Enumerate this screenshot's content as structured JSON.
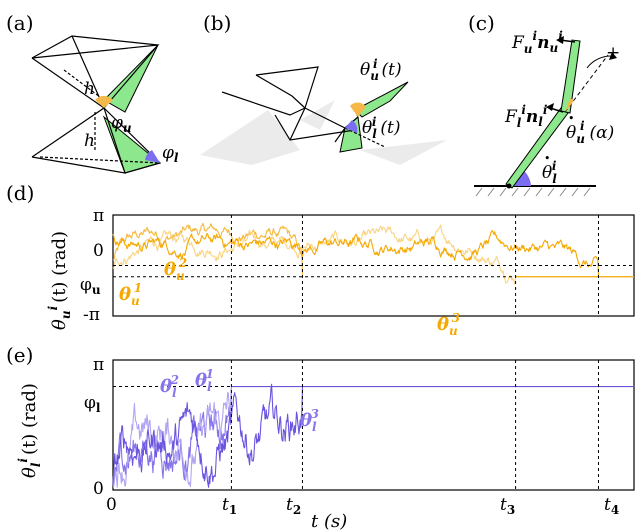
{
  "panels": {
    "a": "(a)",
    "b": "(b)",
    "c": "(c)",
    "d": "(d)",
    "e": "(e)"
  },
  "diagram_a": {
    "h_upper": "h",
    "h_lower": "h",
    "phi_u": "φ",
    "phi_u_sub": "u",
    "phi_l": "φ",
    "phi_l_sub": "l"
  },
  "diagram_b": {
    "theta_u": "θ",
    "theta_u_sub": "u",
    "theta_u_sup": "i",
    "theta_u_arg": "(t)",
    "theta_l": "θ",
    "theta_l_sub": "l",
    "theta_l_sup": "i",
    "theta_l_arg": "(t)"
  },
  "diagram_c": {
    "force_u": "F",
    "force_u_sub": "u",
    "force_u_sup": "i",
    "force_u_n": "n",
    "force_u_n_sub": "u",
    "force_u_n_sup": "i",
    "force_l": "F",
    "force_l_sub": "l",
    "force_l_sup": "i",
    "force_l_n": "n",
    "force_l_n_sub": "l",
    "force_l_n_sup": "i",
    "dtheta_u": "θ",
    "dtheta_u_sub": "u",
    "dtheta_u_sup": "i",
    "dtheta_u_arg": "(α)",
    "dtheta_l": "θ",
    "dtheta_l_sub": "l",
    "dtheta_l_sup": "i",
    "plus": "+"
  },
  "colors": {
    "upper_dark": "#f5a800",
    "upper_mid": "#f7b93d",
    "upper_light": "#fad482",
    "lower_dark": "#6a55e0",
    "lower_mid": "#8774ea",
    "lower_light": "#b1a4f2",
    "wing_green": "#8de88d",
    "phi_l_fill": "#7b6cf0",
    "phi_u_fill": "#f5b94a"
  },
  "chart_data": [
    {
      "type": "line",
      "panel": "(d)",
      "ylabel": "θ_u^i (t) (rad)",
      "yticks": [
        "π",
        "0",
        "φ_u",
        "-π"
      ],
      "ylim": [
        -3.1416,
        3.1416
      ],
      "xlim": [
        0,
        4.4
      ],
      "event_times": {
        "t1": 1.0,
        "t2": 1.6,
        "t3": 3.4,
        "t4": 4.1
      },
      "threshold_label": "φ_u",
      "threshold_value": -0.7,
      "series": [
        {
          "name": "θ_u^1",
          "color": "#f7b93d",
          "end_time": 1.6,
          "start": 0.2,
          "mean": 2.0,
          "final": -0.7
        },
        {
          "name": "θ_u^2",
          "color": "#fad482",
          "end_time": 3.4,
          "start": -0.3,
          "mean": 1.4,
          "final": -0.7
        },
        {
          "name": "θ_u^3",
          "color": "#f5a800",
          "end_time": 4.1,
          "start": 1.8,
          "mean": 1.3,
          "final": -0.7
        }
      ],
      "series_labels": [
        {
          "main": "θ",
          "sub": "u",
          "sup": "1"
        },
        {
          "main": "θ",
          "sub": "u",
          "sup": "2"
        },
        {
          "main": "θ",
          "sub": "u",
          "sup": "3"
        }
      ]
    },
    {
      "type": "line",
      "panel": "(e)",
      "ylabel": "θ_l^i (t) (rad)",
      "xlabel": "t (s)",
      "yticks": [
        "π",
        "φ_l",
        "0"
      ],
      "xticks": [
        "0",
        "t₁",
        "t₂",
        "t₃",
        "t₄"
      ],
      "ylim": [
        0,
        3.1416
      ],
      "xlim": [
        0,
        4.4
      ],
      "event_times": {
        "t1": 1.0,
        "t2": 1.6,
        "t3": 3.4,
        "t4": 4.1
      },
      "threshold_label": "φ_l",
      "threshold_value": 2.5,
      "series": [
        {
          "name": "θ_l^1",
          "color": "#8774ea",
          "end_time": 1.0,
          "start": 0.2,
          "final": 2.5
        },
        {
          "name": "θ_l^2",
          "color": "#b1a4f2",
          "end_time": 1.0,
          "start": 0.3,
          "final": 2.5
        },
        {
          "name": "θ_l^3",
          "color": "#6a55e0",
          "end_time": 1.6,
          "start": 0.2,
          "final": 2.5
        }
      ],
      "series_labels": [
        {
          "main": "θ",
          "sub": "l",
          "sup": "1"
        },
        {
          "main": "θ",
          "sub": "l",
          "sup": "2"
        },
        {
          "main": "θ",
          "sub": "l",
          "sup": "3"
        }
      ]
    }
  ],
  "axis_text": {
    "d_ylabel_main": "θ",
    "d_ylabel_sub": "u",
    "d_ylabel_sup": "i",
    "d_ylabel_rest": "(t) (rad)",
    "e_ylabel_main": "θ",
    "e_ylabel_sub": "l",
    "e_ylabel_sup": "i",
    "e_ylabel_rest": "(t) (rad)",
    "d_tick_pi": "π",
    "d_tick_0": "0",
    "d_tick_phi": "φ",
    "d_tick_phi_sub": "u",
    "d_tick_mpi": "-π",
    "e_tick_pi": "π",
    "e_tick_phi": "φ",
    "e_tick_phi_sub": "l",
    "e_tick_0": "0",
    "x_tick_0": "0",
    "x_tick_t1": "t",
    "x_tick_t1_sub": "1",
    "x_tick_t2": "t",
    "x_tick_t2_sub": "2",
    "x_tick_t3": "t",
    "x_tick_t3_sub": "3",
    "x_tick_t4": "t",
    "x_tick_t4_sub": "4",
    "xlabel": "t (s)"
  }
}
